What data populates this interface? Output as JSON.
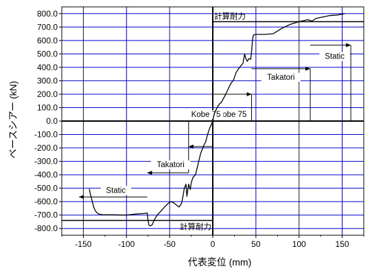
{
  "chart_data": {
    "type": "line",
    "xlabel": "代表変位 (mm)",
    "ylabel": "ベースシアー (kN)",
    "xlim": [
      -175,
      175
    ],
    "ylim": [
      -850,
      850
    ],
    "x_ticks": [
      -150,
      -100,
      -50,
      0,
      50,
      100,
      150
    ],
    "y_ticks": [
      800,
      700,
      600,
      500,
      400,
      300,
      200,
      100,
      0,
      -100,
      -200,
      -300,
      -400,
      -500,
      -600,
      -700,
      -800
    ],
    "x_tick_labels": [
      "-150",
      "-100",
      "-50",
      "0",
      "50",
      "100",
      "150"
    ],
    "y_tick_labels": [
      "800.0",
      "700.0",
      "600.0",
      "500.0",
      "400.0",
      "300.0",
      "200.0",
      "100.0",
      "0.0",
      "-100.0",
      "-200.0",
      "-300.0",
      "-400.0",
      "-500.0",
      "-600.0",
      "-700.0",
      "-800.0"
    ],
    "grid": true,
    "grid_color": "#0000cc",
    "line_color": "#000000",
    "series": [
      {
        "points": [
          [
            -143,
            -505
          ],
          [
            -142,
            -540
          ],
          [
            -140,
            -590
          ],
          [
            -138,
            -640
          ],
          [
            -136,
            -670
          ],
          [
            -133,
            -690
          ],
          [
            -128,
            -698
          ],
          [
            -115,
            -698
          ],
          [
            -100,
            -700
          ],
          [
            -90,
            -693
          ],
          [
            -80,
            -688
          ],
          [
            -76,
            -685
          ],
          [
            -75,
            -740
          ],
          [
            -74,
            -775
          ],
          [
            -72,
            -780
          ],
          [
            -70,
            -770
          ],
          [
            -68,
            -740
          ],
          [
            -66,
            -715
          ],
          [
            -63,
            -690
          ],
          [
            -60,
            -670
          ],
          [
            -56,
            -640
          ],
          [
            -52,
            -615
          ],
          [
            -49,
            -600
          ],
          [
            -46,
            -605
          ],
          [
            -42,
            -625
          ],
          [
            -39,
            -640
          ],
          [
            -36,
            -610
          ],
          [
            -34,
            -540
          ],
          [
            -33,
            -500
          ],
          [
            -31,
            -470
          ],
          [
            -30,
            -560
          ],
          [
            -28,
            -470
          ],
          [
            -26,
            -510
          ],
          [
            -25,
            -460
          ],
          [
            -23,
            -420
          ],
          [
            -20,
            -400
          ],
          [
            -17,
            -320
          ],
          [
            -14,
            -240
          ],
          [
            -11,
            -190
          ],
          [
            -8,
            -150
          ],
          [
            -6,
            -100
          ],
          [
            -4,
            -60
          ],
          [
            -2,
            -30
          ],
          [
            0,
            0
          ],
          [
            2,
            60
          ],
          [
            5,
            100
          ],
          [
            8,
            130
          ],
          [
            10,
            140
          ],
          [
            13,
            175
          ],
          [
            15,
            200
          ],
          [
            18,
            240
          ],
          [
            21,
            280
          ],
          [
            24,
            305
          ],
          [
            27,
            360
          ],
          [
            30,
            390
          ],
          [
            33,
            415
          ],
          [
            35,
            430
          ],
          [
            37,
            500
          ],
          [
            38,
            470
          ],
          [
            40,
            445
          ],
          [
            42,
            465
          ],
          [
            44,
            460
          ],
          [
            45,
            520
          ],
          [
            46,
            600
          ],
          [
            47,
            640
          ],
          [
            50,
            645
          ],
          [
            60,
            645
          ],
          [
            70,
            650
          ],
          [
            80,
            690
          ],
          [
            90,
            720
          ],
          [
            100,
            740
          ],
          [
            110,
            755
          ],
          [
            115,
            745
          ],
          [
            120,
            765
          ],
          [
            135,
            785
          ],
          [
            145,
            790
          ],
          [
            153,
            800
          ]
        ]
      }
    ],
    "capacity_lines": [
      {
        "label": "計算耐力",
        "y": 740,
        "x_from": 0,
        "x_to": 175
      },
      {
        "label": "計算耐力",
        "y": -740,
        "x_from": -175,
        "x_to": 0
      }
    ],
    "annotations": [
      {
        "label": "Kobe 75",
        "side": "positive",
        "x_from": 0,
        "x_to": 45,
        "y_top": 200,
        "y_bottom": 0,
        "arrow_y": 200,
        "arrow_from": 0,
        "arrow_to": 45
      },
      {
        "label": "Takatori",
        "side": "positive",
        "x_from": 45,
        "x_to": 113,
        "y_top": 390,
        "y_bottom": 0,
        "arrow_y": 390,
        "arrow_from": 45,
        "arrow_to": 113
      },
      {
        "label": "Static",
        "side": "positive",
        "x_from": 113,
        "x_to": 160,
        "y_top": 565,
        "y_bottom": 0,
        "arrow_y": 565,
        "arrow_from": 113,
        "arrow_to": 160
      },
      {
        "label": "Kobe 75",
        "side": "negative",
        "x_from": -28,
        "x_to": 0,
        "y_top": 0,
        "y_bottom": -190,
        "arrow_y": -190,
        "arrow_from": 0,
        "arrow_to": -28
      },
      {
        "label": "Takatori",
        "side": "negative",
        "x_from": -76,
        "x_to": -28,
        "y_top": 0,
        "y_bottom": -385,
        "arrow_y": -385,
        "arrow_from": -28,
        "arrow_to": -76
      },
      {
        "label": "Static",
        "side": "negative",
        "x_from": -155,
        "x_to": -76,
        "y_top": 0,
        "y_bottom": -565,
        "arrow_y": -565,
        "arrow_from": -76,
        "arrow_to": -155
      }
    ]
  }
}
